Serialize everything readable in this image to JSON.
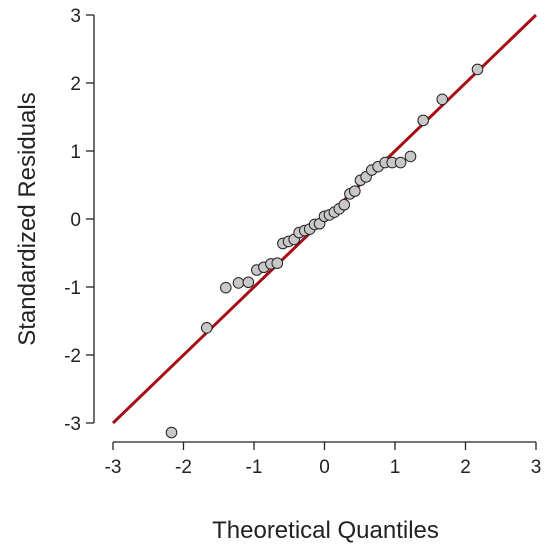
{
  "chart_data": {
    "type": "scatter",
    "subtype": "qq-plot",
    "title": "",
    "xlabel": "Theoretical Quantiles",
    "ylabel": "Standardized Residuals",
    "xlim": [
      -3,
      3
    ],
    "ylim": [
      -3,
      3
    ],
    "x_ticks": [
      -3,
      -2,
      -1,
      0,
      1,
      2,
      3
    ],
    "y_ticks": [
      -3,
      -2,
      -1,
      0,
      1,
      2,
      3
    ],
    "grid": false,
    "reference_line": {
      "from": [
        -3,
        -3
      ],
      "to": [
        3,
        3
      ],
      "color": "#a50f15"
    },
    "point_fill": "#c8c8c8",
    "point_edge": "#222222",
    "points": [
      {
        "x": -2.17,
        "y": -3.14
      },
      {
        "x": -1.67,
        "y": -1.6
      },
      {
        "x": -1.4,
        "y": -1.01
      },
      {
        "x": -1.22,
        "y": -0.94
      },
      {
        "x": -1.08,
        "y": -0.93
      },
      {
        "x": -0.96,
        "y": -0.75
      },
      {
        "x": -0.86,
        "y": -0.71
      },
      {
        "x": -0.76,
        "y": -0.66
      },
      {
        "x": -0.67,
        "y": -0.65
      },
      {
        "x": -0.59,
        "y": -0.36
      },
      {
        "x": -0.51,
        "y": -0.33
      },
      {
        "x": -0.43,
        "y": -0.3
      },
      {
        "x": -0.36,
        "y": -0.2
      },
      {
        "x": -0.28,
        "y": -0.17
      },
      {
        "x": -0.21,
        "y": -0.15
      },
      {
        "x": -0.14,
        "y": -0.08
      },
      {
        "x": -0.07,
        "y": -0.07
      },
      {
        "x": 0.0,
        "y": 0.04
      },
      {
        "x": 0.07,
        "y": 0.06
      },
      {
        "x": 0.14,
        "y": 0.1
      },
      {
        "x": 0.21,
        "y": 0.15
      },
      {
        "x": 0.28,
        "y": 0.21
      },
      {
        "x": 0.36,
        "y": 0.37
      },
      {
        "x": 0.43,
        "y": 0.41
      },
      {
        "x": 0.51,
        "y": 0.57
      },
      {
        "x": 0.59,
        "y": 0.62
      },
      {
        "x": 0.67,
        "y": 0.72
      },
      {
        "x": 0.76,
        "y": 0.77
      },
      {
        "x": 0.86,
        "y": 0.83
      },
      {
        "x": 0.96,
        "y": 0.83
      },
      {
        "x": 1.08,
        "y": 0.83
      },
      {
        "x": 1.22,
        "y": 0.92
      },
      {
        "x": 1.4,
        "y": 1.45
      },
      {
        "x": 1.67,
        "y": 1.76
      },
      {
        "x": 2.17,
        "y": 2.2
      }
    ]
  }
}
